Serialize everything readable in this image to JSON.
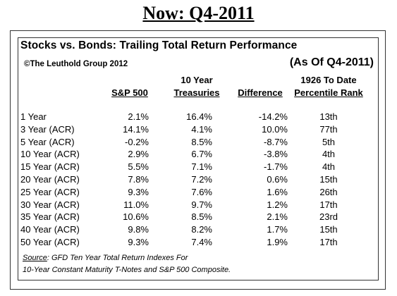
{
  "title": "Now: Q4-2011",
  "table": {
    "title": "Stocks vs. Bonds: Trailing Total Return Performance",
    "copyright": "©The Leuthold Group 2012",
    "as_of": "(As Of Q4-2011)",
    "headers": {
      "sp500": "S&P 500",
      "treasuries_line1": "10 Year",
      "treasuries_line2": "Treasuries",
      "difference": "Difference",
      "rank_line1": "1926 To Date",
      "rank_line2": "Percentile Rank"
    },
    "rows": [
      {
        "period": "1 Year",
        "sp500": "2.1%",
        "treasuries": "16.4%",
        "difference": "-14.2%",
        "rank": "13th"
      },
      {
        "period": "3 Year (ACR)",
        "sp500": "14.1%",
        "treasuries": "4.1%",
        "difference": "10.0%",
        "rank": "77th"
      },
      {
        "period": "5 Year (ACR)",
        "sp500": "-0.2%",
        "treasuries": "8.5%",
        "difference": "-8.7%",
        "rank": "5th"
      },
      {
        "period": "10 Year (ACR)",
        "sp500": "2.9%",
        "treasuries": "6.7%",
        "difference": "-3.8%",
        "rank": "4th"
      },
      {
        "period": "15 Year (ACR)",
        "sp500": "5.5%",
        "treasuries": "7.1%",
        "difference": "-1.7%",
        "rank": "4th"
      },
      {
        "period": "20 Year (ACR)",
        "sp500": "7.8%",
        "treasuries": "7.2%",
        "difference": "0.6%",
        "rank": "15th"
      },
      {
        "period": "25 Year (ACR)",
        "sp500": "9.3%",
        "treasuries": "7.6%",
        "difference": "1.6%",
        "rank": "26th"
      },
      {
        "period": "30 Year (ACR)",
        "sp500": "11.0%",
        "treasuries": "9.7%",
        "difference": "1.2%",
        "rank": "17th"
      },
      {
        "period": "35 Year (ACR)",
        "sp500": "10.6%",
        "treasuries": "8.5%",
        "difference": "2.1%",
        "rank": "23rd"
      },
      {
        "period": "40 Year (ACR)",
        "sp500": "9.8%",
        "treasuries": "8.2%",
        "difference": "1.7%",
        "rank": "15th"
      },
      {
        "period": "50 Year (ACR)",
        "sp500": "9.3%",
        "treasuries": "7.4%",
        "difference": "1.9%",
        "rank": "17th"
      }
    ],
    "source_label": "Source",
    "source_text": ": GFD Ten Year Total Return Indexes For",
    "source_line2": "10-Year Constant Maturity T-Notes and S&P 500 Composite."
  }
}
